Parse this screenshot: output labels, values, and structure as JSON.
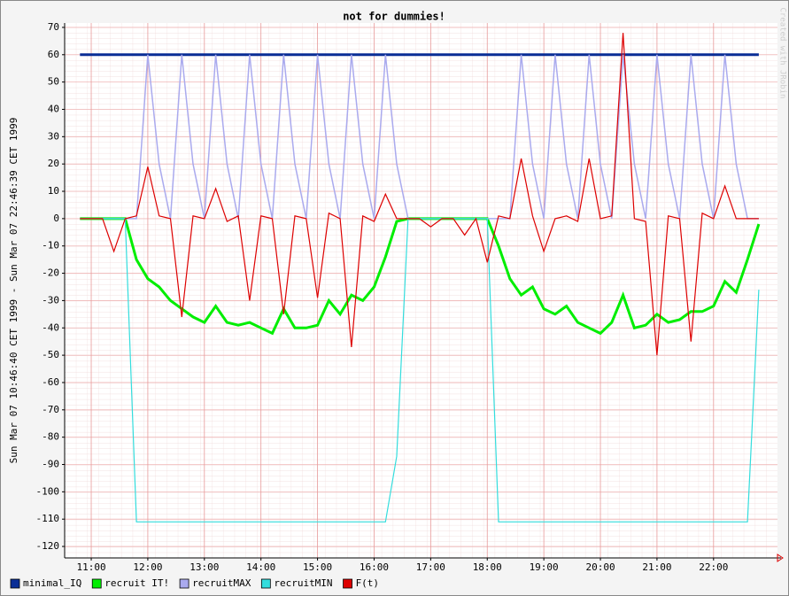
{
  "chart_data": {
    "type": "line",
    "title": "not for dummies!",
    "y_label": "Sun Mar 07 10:46:40 CET 1999 - Sun Mar 07 22:46:39 CET 1999",
    "watermark": "Created with JRobin",
    "x": [
      10.8,
      11.0,
      11.2,
      11.4,
      11.6,
      11.8,
      12.0,
      12.2,
      12.4,
      12.6,
      12.8,
      13.0,
      13.2,
      13.4,
      13.6,
      13.8,
      14.0,
      14.2,
      14.4,
      14.6,
      14.8,
      15.0,
      15.2,
      15.4,
      15.6,
      15.8,
      16.0,
      16.2,
      16.4,
      16.6,
      16.8,
      17.0,
      17.2,
      17.4,
      17.6,
      17.8,
      18.0,
      18.2,
      18.4,
      18.6,
      18.8,
      19.0,
      19.2,
      19.4,
      19.6,
      19.8,
      20.0,
      20.2,
      20.4,
      20.6,
      20.8,
      21.0,
      21.2,
      21.4,
      21.6,
      21.8,
      22.0,
      22.2,
      22.4,
      22.6,
      22.8
    ],
    "series": [
      {
        "name": "minimal_IQ",
        "color": "#0a2e96",
        "line_width": 3,
        "values": [
          60,
          60,
          60,
          60,
          60,
          60,
          60,
          60,
          60,
          60,
          60,
          60,
          60,
          60,
          60,
          60,
          60,
          60,
          60,
          60,
          60,
          60,
          60,
          60,
          60,
          60,
          60,
          60,
          60,
          60,
          60,
          60,
          60,
          60,
          60,
          60,
          60,
          60,
          60,
          60,
          60,
          60,
          60,
          60,
          60,
          60,
          60,
          60,
          60,
          60,
          60,
          60,
          60,
          60,
          60,
          60,
          60,
          60,
          60,
          60,
          60
        ]
      },
      {
        "name": "recruit IT!",
        "color": "#00ee00",
        "line_width": 3,
        "values": [
          0,
          0,
          0,
          0,
          0,
          -15,
          -22,
          -25,
          -30,
          -33,
          -36,
          -38,
          -32,
          -38,
          -39,
          -38,
          -40,
          -42,
          -33,
          -40,
          -40,
          -39,
          -30,
          -35,
          -28,
          -30,
          -25,
          -14,
          -1,
          0,
          0,
          0,
          0,
          0,
          0,
          0,
          0,
          -10,
          -22,
          -28,
          -25,
          -33,
          -35,
          -32,
          -38,
          -40,
          -42,
          -38,
          -28,
          -40,
          -39,
          -35,
          -38,
          -37,
          -34,
          -34,
          -32,
          -23,
          -27,
          -15,
          -2
        ]
      },
      {
        "name": "recruitMAX",
        "color": "#aaaaee",
        "line_width": 1.5,
        "values": [
          0,
          0,
          0,
          0,
          0,
          0,
          60,
          20,
          0,
          60,
          20,
          0,
          60,
          20,
          0,
          60,
          20,
          0,
          60,
          20,
          0,
          60,
          20,
          0,
          60,
          20,
          0,
          60,
          20,
          0,
          0,
          0,
          0,
          0,
          0,
          0,
          0,
          0,
          0,
          60,
          20,
          0,
          60,
          20,
          0,
          60,
          20,
          0,
          60,
          20,
          0,
          60,
          20,
          0,
          60,
          20,
          0,
          60,
          20,
          0,
          0
        ]
      },
      {
        "name": "recruitMIN",
        "color": "#33dddd",
        "line_width": 1.2,
        "values": [
          0,
          0,
          0,
          0,
          0,
          -111,
          -111,
          -111,
          -111,
          -111,
          -111,
          -111,
          -111,
          -111,
          -111,
          -111,
          -111,
          -111,
          -111,
          -111,
          -111,
          -111,
          -111,
          -111,
          -111,
          -111,
          -111,
          -111,
          -87,
          0,
          0,
          0,
          0,
          0,
          0,
          0,
          0,
          -111,
          -111,
          -111,
          -111,
          -111,
          -111,
          -111,
          -111,
          -111,
          -111,
          -111,
          -111,
          -111,
          -111,
          -111,
          -111,
          -111,
          -111,
          -111,
          -111,
          -111,
          -111,
          -111,
          -26
        ]
      },
      {
        "name": "F(t)",
        "color": "#dd0000",
        "line_width": 1.2,
        "values": [
          0,
          0,
          0,
          -12,
          0,
          1,
          19,
          1,
          0,
          -36,
          1,
          0,
          11,
          -1,
          1,
          -30,
          1,
          0,
          -35,
          1,
          0,
          -29,
          2,
          0,
          -47,
          1,
          -1,
          9,
          0,
          0,
          0,
          -3,
          0,
          0,
          -6,
          0,
          -16,
          1,
          0,
          22,
          1,
          -12,
          0,
          1,
          -1,
          22,
          0,
          1,
          68,
          0,
          -1,
          -50,
          1,
          0,
          -45,
          2,
          0,
          12,
          0,
          0,
          0
        ]
      }
    ],
    "xlim": [
      10.53,
      23.13
    ],
    "xticks": [
      {
        "value": 11,
        "label": "11:00"
      },
      {
        "value": 12,
        "label": "12:00"
      },
      {
        "value": 13,
        "label": "13:00"
      },
      {
        "value": 14,
        "label": "14:00"
      },
      {
        "value": 15,
        "label": "15:00"
      },
      {
        "value": 16,
        "label": "16:00"
      },
      {
        "value": 17,
        "label": "17:00"
      },
      {
        "value": 18,
        "label": "18:00"
      },
      {
        "value": 19,
        "label": "19:00"
      },
      {
        "value": 20,
        "label": "20:00"
      },
      {
        "value": 21,
        "label": "21:00"
      },
      {
        "value": 22,
        "label": "22:00"
      }
    ],
    "ylim": [
      -124.2,
      71.6
    ],
    "yticks": [
      -120,
      -110,
      -100,
      -90,
      -80,
      -70,
      -60,
      -50,
      -40,
      -30,
      -20,
      -10,
      0,
      10,
      20,
      30,
      40,
      50,
      60,
      70
    ],
    "grid": true,
    "legend": "bottom"
  }
}
